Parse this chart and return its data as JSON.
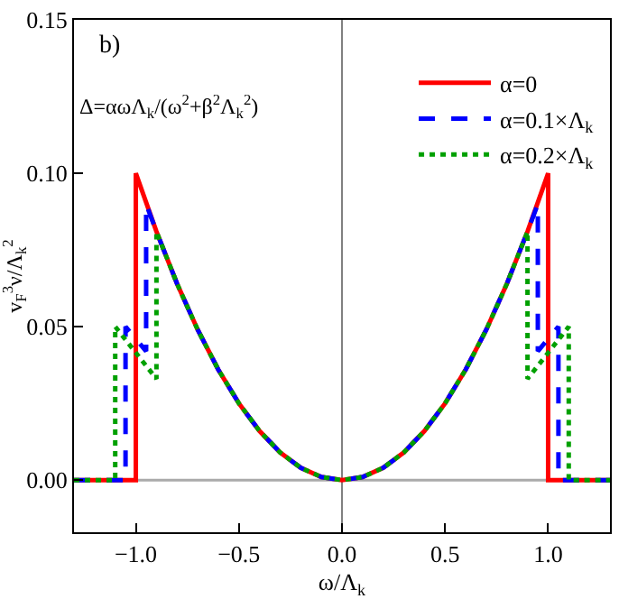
{
  "chart_data": {
    "type": "line",
    "xlabel": "ω/Λ$_{k}$",
    "ylabel": "v$_{F}$$^{3}$ν/Λ$_{k}$$^{2}$",
    "annotations": [
      "b)",
      "Δ=αωΛ$_{k}$/(ω$^{2}$+β$^{2}$Λ$_{k}$$^{2}$)"
    ],
    "series": [
      {
        "name": "α=0",
        "color": "#ff0000",
        "line_style": "solid",
        "x": [
          -1.3,
          -1.0,
          -1.0,
          -0.9,
          -0.8,
          -0.7,
          -0.6,
          -0.5,
          -0.4,
          -0.3,
          -0.2,
          -0.1,
          0.0,
          0.1,
          0.2,
          0.3,
          0.4,
          0.5,
          0.6,
          0.7,
          0.8,
          0.9,
          1.0,
          1.0,
          1.3
        ],
        "values": [
          0,
          0,
          0.1,
          0.081,
          0.064,
          0.049,
          0.036,
          0.025,
          0.016,
          0.009,
          0.004,
          0.001,
          0,
          0.001,
          0.004,
          0.009,
          0.016,
          0.025,
          0.036,
          0.049,
          0.064,
          0.081,
          0.1,
          0,
          0
        ]
      },
      {
        "name": "α=0.1×Λ$_{k}$",
        "color": "#0000ff",
        "line_style": "dashed",
        "x": [
          -1.3,
          -1.05,
          -1.05,
          -0.95,
          -0.95,
          -0.9,
          -0.8,
          -0.7,
          -0.6,
          -0.5,
          -0.4,
          -0.3,
          -0.2,
          -0.1,
          0.0,
          0.1,
          0.2,
          0.3,
          0.4,
          0.5,
          0.6,
          0.7,
          0.8,
          0.9,
          0.95,
          0.95,
          1.05,
          1.05,
          1.3
        ],
        "values": [
          0,
          0,
          0.05,
          0.042,
          0.09,
          0.081,
          0.064,
          0.049,
          0.036,
          0.025,
          0.016,
          0.009,
          0.004,
          0.001,
          0,
          0.001,
          0.004,
          0.009,
          0.016,
          0.025,
          0.036,
          0.049,
          0.064,
          0.081,
          0.09,
          0.042,
          0.05,
          0,
          0
        ]
      },
      {
        "name": "α=0.2×Λ$_{k}$",
        "color": "#00a000",
        "line_style": "dotted",
        "x": [
          -1.3,
          -1.1,
          -1.1,
          -0.9,
          -0.9,
          -0.8,
          -0.7,
          -0.6,
          -0.5,
          -0.4,
          -0.3,
          -0.2,
          -0.1,
          0.0,
          0.1,
          0.2,
          0.3,
          0.4,
          0.5,
          0.6,
          0.7,
          0.8,
          0.9,
          0.9,
          1.1,
          1.1,
          1.3
        ],
        "values": [
          0,
          0,
          0.05,
          0.033,
          0.081,
          0.064,
          0.049,
          0.036,
          0.025,
          0.016,
          0.009,
          0.004,
          0.001,
          0,
          0.001,
          0.004,
          0.009,
          0.016,
          0.025,
          0.036,
          0.049,
          0.064,
          0.081,
          0.033,
          0.05,
          0,
          0
        ]
      }
    ],
    "xlim": [
      -1.3,
      1.3
    ],
    "ylim": [
      -0.017,
      0.15
    ],
    "xticks": [
      {
        "value": -1.0,
        "label": "−1.0"
      },
      {
        "value": -0.5,
        "label": "−0.5"
      },
      {
        "value": 0.0,
        "label": "0.0"
      },
      {
        "value": 0.5,
        "label": "0.5"
      },
      {
        "value": 1.0,
        "label": "1.0"
      }
    ],
    "yticks": [
      {
        "value": 0,
        "label": "0.00"
      },
      {
        "value": 0.05,
        "label": "0.05"
      },
      {
        "value": 0.1,
        "label": "0.10"
      },
      {
        "value": 0.15,
        "label": "0.15"
      }
    ],
    "ref_lines": [
      {
        "axis": "x",
        "value": 0,
        "color": "#808080"
      },
      {
        "axis": "y",
        "value": 0,
        "color": "#aaaaaa"
      }
    ],
    "grid": false,
    "legend": "top right",
    "marker": "none"
  }
}
